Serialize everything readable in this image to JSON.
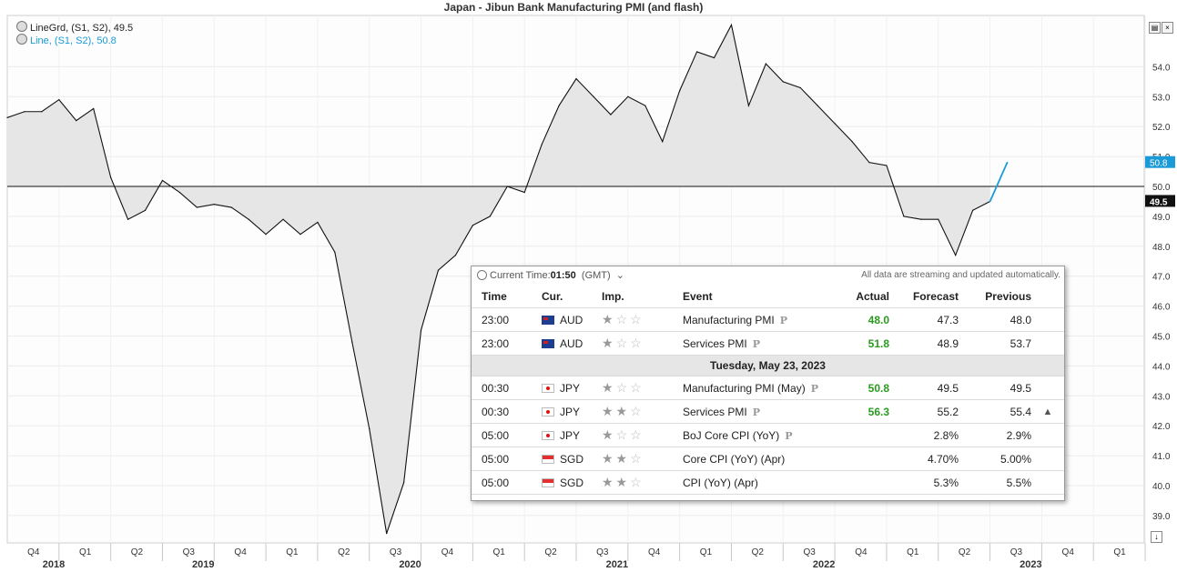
{
  "chart_data": {
    "type": "area",
    "title": "Japan - Jibun Bank Manufacturing PMI (and flash)",
    "legend": [
      {
        "label": "LineGrd, (S1, S2), 49.5",
        "color": "#222222"
      },
      {
        "label": "Line, (S1, S2), 50.8",
        "color": "#1a9ad6"
      }
    ],
    "baseline": 50.0,
    "ylim": [
      38.5,
      55.5
    ],
    "y_ticks": [
      39.0,
      40.0,
      41.0,
      42.0,
      43.0,
      44.0,
      45.0,
      46.0,
      47.0,
      48.0,
      49.0,
      50.0,
      51.0,
      52.0,
      53.0,
      54.0
    ],
    "x_quarter_labels": [
      "Q4",
      "Q1",
      "Q2",
      "Q3",
      "Q4",
      "Q1",
      "Q2",
      "Q3",
      "Q4",
      "Q1",
      "Q2",
      "Q3",
      "Q4",
      "Q1",
      "Q2",
      "Q3",
      "Q4",
      "Q1",
      "Q2",
      "Q3",
      "Q4",
      "Q1"
    ],
    "x_year_labels": [
      "2018",
      "2019",
      "2020",
      "2021",
      "2022",
      "2023"
    ],
    "series": [
      {
        "name": "LineGrd",
        "x": [
          "2018-07",
          "2018-08",
          "2018-09",
          "2018-10",
          "2018-11",
          "2018-12",
          "2019-01",
          "2019-02",
          "2019-03",
          "2019-04",
          "2019-05",
          "2019-06",
          "2019-07",
          "2019-08",
          "2019-09",
          "2019-10",
          "2019-11",
          "2019-12",
          "2020-01",
          "2020-02",
          "2020-03",
          "2020-04",
          "2020-05",
          "2020-06",
          "2020-07",
          "2020-08",
          "2020-09",
          "2020-10",
          "2020-11",
          "2020-12",
          "2021-01",
          "2021-02",
          "2021-03",
          "2021-04",
          "2021-05",
          "2021-06",
          "2021-07",
          "2021-08",
          "2021-09",
          "2021-10",
          "2021-11",
          "2021-12",
          "2022-01",
          "2022-02",
          "2022-03",
          "2022-04",
          "2022-05",
          "2022-06",
          "2022-07",
          "2022-08",
          "2022-09",
          "2022-10",
          "2022-11",
          "2022-12",
          "2023-01",
          "2023-02",
          "2023-03",
          "2023-04"
        ],
        "values": [
          52.3,
          52.5,
          52.5,
          52.9,
          52.2,
          52.6,
          50.3,
          48.9,
          49.2,
          50.2,
          49.8,
          49.3,
          49.4,
          49.3,
          48.9,
          48.4,
          48.9,
          48.4,
          48.8,
          47.8,
          44.8,
          41.9,
          38.4,
          40.1,
          45.2,
          47.2,
          47.7,
          48.7,
          49.0,
          50.0,
          49.8,
          51.4,
          52.7,
          53.6,
          53.0,
          52.4,
          53.0,
          52.7,
          51.5,
          53.2,
          54.5,
          54.3,
          55.4,
          52.7,
          54.1,
          53.5,
          53.3,
          52.7,
          52.1,
          51.5,
          50.8,
          50.7,
          49.0,
          48.9,
          48.9,
          47.7,
          49.2,
          49.5
        ]
      },
      {
        "name": "Line",
        "x": [
          "2023-04",
          "2023-05"
        ],
        "values": [
          49.5,
          50.8
        ]
      }
    ],
    "last_value_labels": [
      "50.8",
      "49.5"
    ]
  },
  "calendar": {
    "current_time_label": "Current Time:",
    "current_time_value": "01:50",
    "timezone": "(GMT)",
    "streaming_note": "All data are streaming and updated automatically.",
    "headers": {
      "time": "Time",
      "cur": "Cur.",
      "imp": "Imp.",
      "event": "Event",
      "actual": "Actual",
      "forecast": "Forecast",
      "previous": "Previous"
    },
    "rows_before": [
      {
        "time": "23:00",
        "cur": "AUD",
        "flag": "au",
        "stars": 1,
        "event": "Manufacturing PMI",
        "pmark": "P",
        "actual": "48.0",
        "forecast": "47.3",
        "previous": "48.0"
      },
      {
        "time": "23:00",
        "cur": "AUD",
        "flag": "au",
        "stars": 1,
        "event": "Services PMI",
        "pmark": "P",
        "actual": "51.8",
        "forecast": "48.9",
        "previous": "53.7"
      }
    ],
    "date_label": "Tuesday, May 23, 2023",
    "rows_after": [
      {
        "time": "00:30",
        "cur": "JPY",
        "flag": "jp",
        "stars": 1,
        "event": "Manufacturing PMI (May)",
        "pmark": "P",
        "actual": "50.8",
        "forecast": "49.5",
        "previous": "49.5"
      },
      {
        "time": "00:30",
        "cur": "JPY",
        "flag": "jp",
        "stars": 2,
        "event": "Services PMI",
        "pmark": "P",
        "actual": "56.3",
        "forecast": "55.2",
        "previous": "55.4",
        "extra": "▲"
      },
      {
        "time": "05:00",
        "cur": "JPY",
        "flag": "jp",
        "stars": 1,
        "event": "BoJ Core CPI (YoY)",
        "pmark": "P",
        "actual": "",
        "forecast": "2.8%",
        "previous": "2.9%"
      },
      {
        "time": "05:00",
        "cur": "SGD",
        "flag": "sg",
        "stars": 2,
        "event": "Core CPI (YoY) (Apr)",
        "pmark": "",
        "actual": "",
        "forecast": "4.70%",
        "previous": "5.00%"
      },
      {
        "time": "05:00",
        "cur": "SGD",
        "flag": "sg",
        "stars": 2,
        "event": "CPI (YoY) (Apr)",
        "pmark": "",
        "actual": "",
        "forecast": "5.3%",
        "previous": "5.5%"
      }
    ]
  }
}
